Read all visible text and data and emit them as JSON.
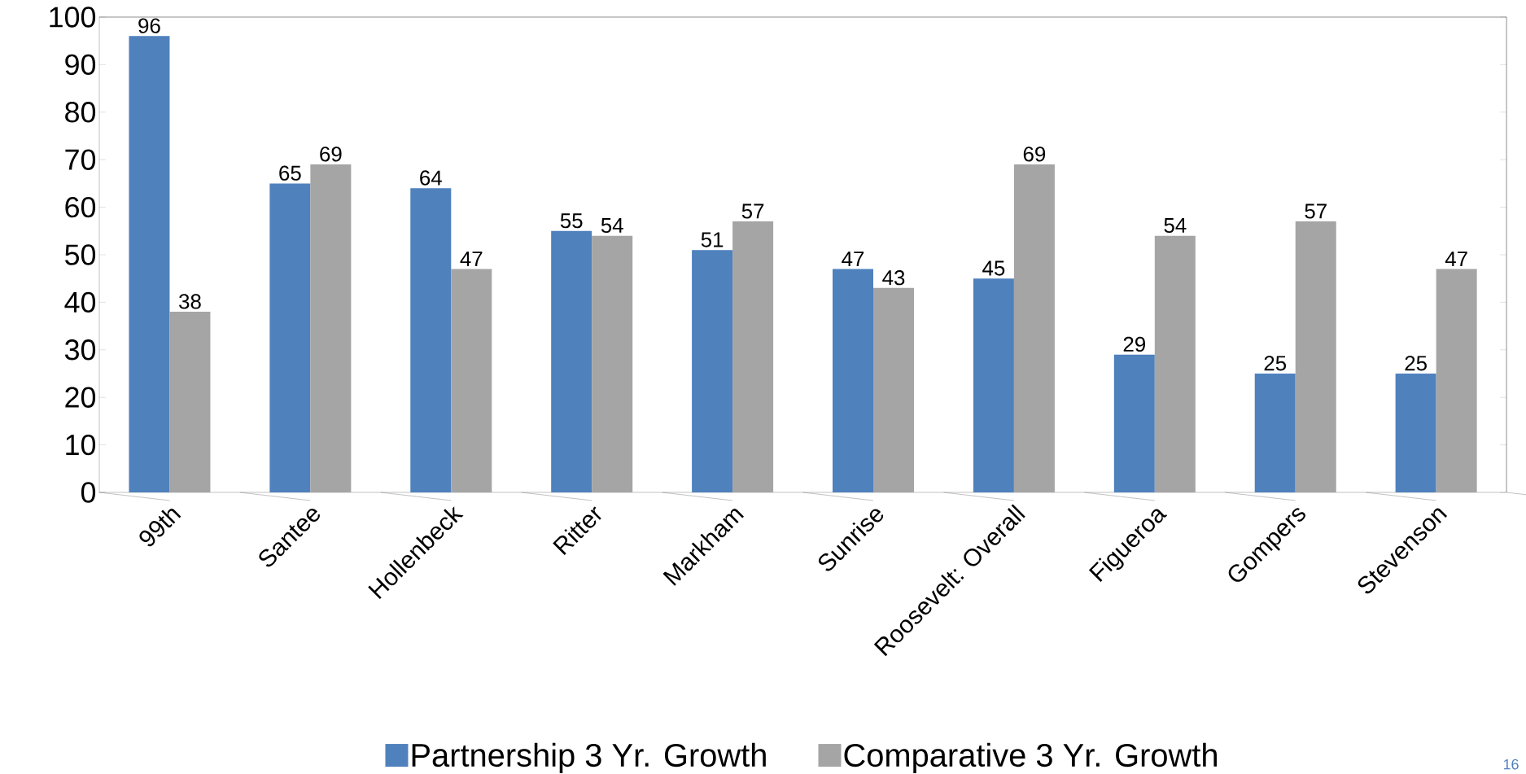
{
  "chart_data": {
    "type": "bar",
    "categories": [
      "99th",
      "Santee",
      "Hollenbeck",
      "Ritter",
      "Markham",
      "Sunrise",
      "Roosevelt: Overall",
      "Figueroa",
      "Gompers",
      "Stevenson"
    ],
    "series": [
      {
        "name": "Partnership 3 Yr. Growth",
        "color": "#4f81bd",
        "values": [
          96,
          65,
          64,
          55,
          51,
          47,
          45,
          29,
          25,
          25
        ]
      },
      {
        "name": "Comparative 3 Yr. Growth",
        "color": "#a5a5a5",
        "values": [
          38,
          69,
          47,
          54,
          57,
          43,
          69,
          54,
          57,
          47
        ]
      }
    ],
    "ylim": [
      0,
      100
    ],
    "yticks": [
      0,
      10,
      20,
      30,
      40,
      50,
      60,
      70,
      80,
      90,
      100
    ],
    "data_labels": true,
    "legend": "bottom",
    "grid": false,
    "annotations": [
      "16"
    ]
  }
}
